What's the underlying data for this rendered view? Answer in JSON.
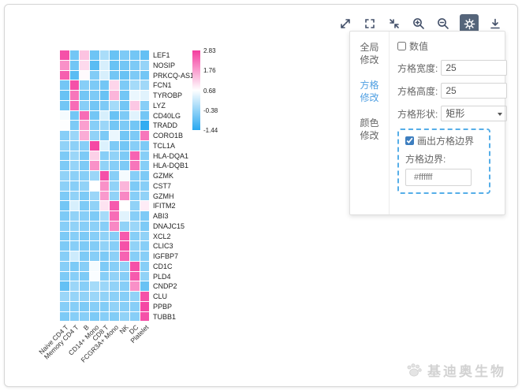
{
  "toolbar": {
    "icons": [
      "expand",
      "frame",
      "compress",
      "zoom-in",
      "zoom-out",
      "settings",
      "download"
    ],
    "active_icon": "settings",
    "active_bg": "#55657a"
  },
  "panel": {
    "tabs": [
      {
        "line1": "全局",
        "line2": "修改",
        "active": false
      },
      {
        "line1": "方格",
        "line2": "修改",
        "active": true
      },
      {
        "line1": "颜色",
        "line2": "修改",
        "active": false
      }
    ],
    "value_checkbox": {
      "label": "数值",
      "checked": false
    },
    "fields": [
      {
        "label": "方格宽度:",
        "value": "25"
      },
      {
        "label": "方格高度:",
        "value": "25"
      }
    ],
    "shape_field": {
      "label": "方格形状:",
      "value": "矩形"
    },
    "border_group": {
      "checkbox_label": "画出方格边界",
      "checked": true,
      "label": "方格边界:",
      "value": "#ffffff",
      "box_border_color": "#56aee8"
    }
  },
  "chart_data": {
    "type": "heatmap",
    "columns": [
      "Naive CD4 T",
      "Memory CD4 T",
      "B",
      "CD14+ Mono",
      "CD8 T",
      "FCGR3A+ Mono",
      "NK",
      "DC",
      "Platelet"
    ],
    "rows": [
      "LEF1",
      "NOSIP",
      "PRKCQ-AS1",
      "FCN1",
      "TYROBP",
      "LYZ",
      "CD40LG",
      "TRADD",
      "CORO1B",
      "TCL1A",
      "HLA-DQA1",
      "HLA-DQB1",
      "GZMK",
      "CST7",
      "GZMH",
      "IFITM2",
      "ABI3",
      "DNAJC15",
      "XCL2",
      "CLIC3",
      "IGFBP7",
      "CD1C",
      "PLD4",
      "CNDP2",
      "CLU",
      "PPBP",
      "TUBB1"
    ],
    "values": [
      [
        2.6,
        -0.7,
        1.35,
        -0.75,
        -0.15,
        -0.8,
        -0.6,
        -0.7,
        -0.85
      ],
      [
        1.9,
        -0.7,
        1.1,
        -0.95,
        0.3,
        -0.8,
        -0.7,
        -0.6,
        -0.35
      ],
      [
        2.45,
        -0.95,
        0.75,
        -0.55,
        0.3,
        -0.7,
        -0.8,
        -0.6,
        -0.7
      ],
      [
        -0.7,
        2.6,
        -0.5,
        -0.6,
        -0.7,
        1.15,
        -0.6,
        -0.2,
        -0.25
      ],
      [
        -0.8,
        2.2,
        -0.7,
        -0.6,
        -0.8,
        1.5,
        -0.7,
        0.5,
        0.4
      ],
      [
        -0.7,
        2.3,
        -0.5,
        -0.7,
        -0.6,
        -0.2,
        -0.7,
        1.3,
        -0.5
      ],
      [
        0.6,
        -0.7,
        2.3,
        -0.7,
        0.3,
        -0.8,
        -0.6,
        0.4,
        -0.7
      ],
      [
        0.68,
        -0.6,
        1.75,
        -0.5,
        -0.3,
        -0.7,
        -0.6,
        -0.7,
        -1.35
      ],
      [
        -0.5,
        -0.3,
        1.6,
        -0.4,
        -0.6,
        0.5,
        -0.7,
        -0.6,
        2.2
      ],
      [
        -0.4,
        -0.45,
        -0.5,
        2.7,
        0.35,
        -0.6,
        -0.7,
        -0.5,
        -0.6
      ],
      [
        -0.6,
        -0.3,
        -0.6,
        1.2,
        -0.5,
        -0.4,
        -0.6,
        2.4,
        -0.5
      ],
      [
        -0.6,
        -0.35,
        -0.6,
        1.9,
        -0.4,
        -0.5,
        -0.6,
        2.2,
        -0.5
      ],
      [
        -0.4,
        -0.45,
        -0.5,
        -0.3,
        2.6,
        -0.5,
        0.6,
        -0.5,
        -0.6
      ],
      [
        -0.45,
        -0.5,
        -0.4,
        0.7,
        1.9,
        -0.4,
        1.5,
        -0.6,
        -0.5
      ],
      [
        -0.6,
        -0.4,
        -0.6,
        -0.3,
        1.8,
        -0.4,
        2.0,
        -0.5,
        -0.4
      ],
      [
        -0.7,
        0.3,
        -0.6,
        -0.4,
        1.0,
        2.5,
        0.7,
        -0.4,
        0.9
      ],
      [
        -0.6,
        -0.4,
        -0.5,
        -0.6,
        -0.2,
        2.3,
        0.4,
        -0.5,
        -0.6
      ],
      [
        -0.5,
        -0.4,
        -0.5,
        -0.45,
        -0.5,
        2.0,
        -0.4,
        -0.3,
        -0.6
      ],
      [
        -0.6,
        -0.5,
        -0.6,
        -0.5,
        -0.4,
        -0.5,
        2.5,
        -0.5,
        -0.4
      ],
      [
        -0.6,
        -0.5,
        -0.6,
        -0.55,
        -0.4,
        -0.5,
        2.6,
        -0.4,
        -0.5
      ],
      [
        -0.5,
        0.2,
        -0.6,
        -0.5,
        -0.6,
        -0.45,
        2.4,
        -0.5,
        -0.5
      ],
      [
        -0.5,
        -0.6,
        -0.5,
        0.6,
        -0.6,
        -0.5,
        -0.4,
        2.6,
        -0.5
      ],
      [
        -0.6,
        -0.5,
        -0.6,
        0.65,
        -0.5,
        -0.4,
        -0.5,
        2.5,
        -0.4
      ],
      [
        -0.85,
        -0.3,
        -0.5,
        -0.2,
        -0.3,
        -0.4,
        -0.5,
        1.9,
        -0.8
      ],
      [
        -0.3,
        -0.35,
        -0.4,
        -0.3,
        -0.4,
        -0.45,
        -0.5,
        -0.4,
        2.6
      ],
      [
        -0.5,
        -0.5,
        -0.6,
        -0.5,
        -0.55,
        -0.4,
        -0.5,
        -0.5,
        2.7
      ],
      [
        -0.6,
        -0.5,
        -0.5,
        -0.6,
        -0.5,
        -0.55,
        -0.4,
        -0.5,
        2.6
      ]
    ],
    "colorbar": {
      "ticks": [
        "2.83",
        "1.76",
        "0.68",
        "-0.38",
        "-1.44"
      ],
      "min": -1.44,
      "max": 2.83,
      "midpoint": 0.695,
      "color_high": "#F43C9E",
      "color_mid": "#FFFFFF",
      "color_low": "#29A8F0"
    },
    "cell_border_color": "#ffffff",
    "legend_position": "right",
    "grid": true
  },
  "footer": {
    "brand": "基迪奥生物"
  }
}
